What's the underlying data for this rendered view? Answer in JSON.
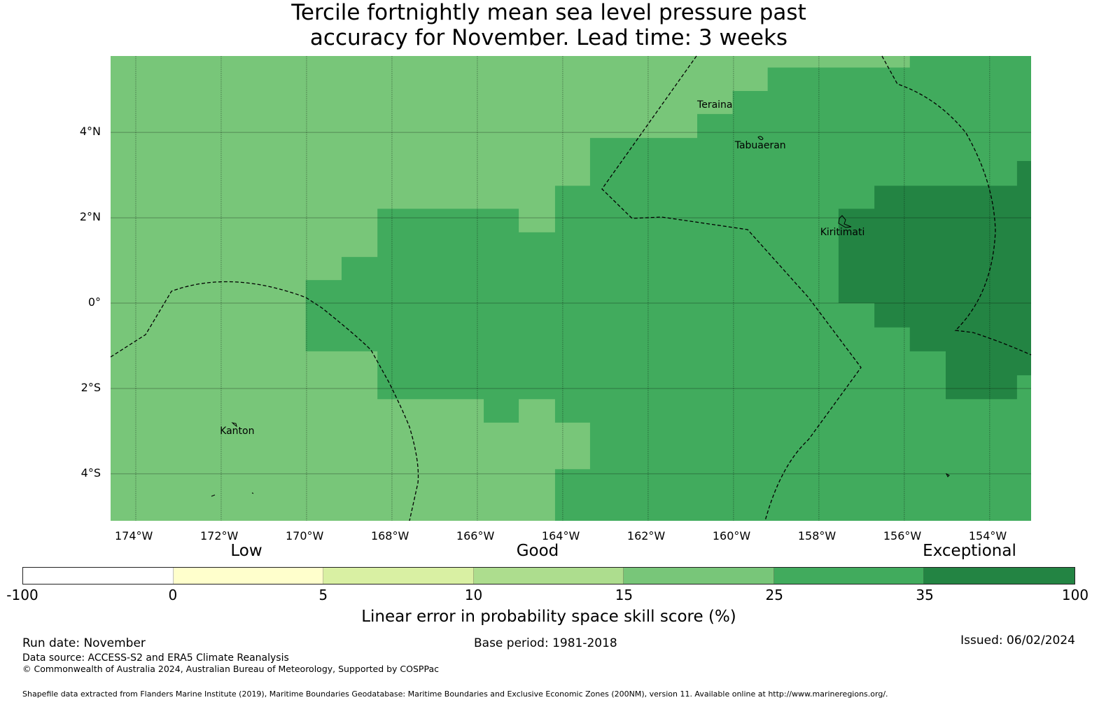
{
  "title_line1": "Tercile fortnightly mean sea level pressure past",
  "title_line2": "accuracy for November. Lead time: 3 weeks",
  "chart_data": {
    "type": "heatmap",
    "extent": {
      "lon": [
        -174.59,
        -153.03
      ],
      "lat": [
        -5.1,
        5.79
      ]
    },
    "lon_ticks": [
      {
        "value": -174,
        "label": "174°W"
      },
      {
        "value": -172,
        "label": "172°W"
      },
      {
        "value": -170,
        "label": "170°W"
      },
      {
        "value": -168,
        "label": "168°W"
      },
      {
        "value": -166,
        "label": "166°W"
      },
      {
        "value": -164,
        "label": "164°W"
      },
      {
        "value": -162,
        "label": "162°W"
      },
      {
        "value": -160,
        "label": "160°W"
      },
      {
        "value": -158,
        "label": "158°W"
      },
      {
        "value": -156,
        "label": "156°W"
      },
      {
        "value": -154,
        "label": "154°W"
      }
    ],
    "lat_ticks": [
      {
        "value": 4,
        "label": "4°N"
      },
      {
        "value": 2,
        "label": "2°N"
      },
      {
        "value": 0,
        "label": "0°"
      },
      {
        "value": -2,
        "label": "2°S"
      },
      {
        "value": -4,
        "label": "4°S"
      }
    ],
    "background_category": "15-25",
    "regions": [
      {
        "category": "25-35",
        "color": "#41ab5d",
        "polygon": [
          [
            -155.87,
            5.79
          ],
          [
            -153.03,
            5.79
          ],
          [
            -153.03,
            -5.1
          ],
          [
            -164.18,
            -5.1
          ],
          [
            -164.18,
            -3.89
          ],
          [
            -163.36,
            -3.89
          ],
          [
            -163.36,
            -2.8
          ],
          [
            -164.18,
            -2.8
          ],
          [
            -164.18,
            -2.25
          ],
          [
            -165.03,
            -2.25
          ],
          [
            -165.03,
            -2.8
          ],
          [
            -165.85,
            -2.8
          ],
          [
            -165.85,
            -2.25
          ],
          [
            -168.34,
            -2.25
          ],
          [
            -168.34,
            -1.13
          ],
          [
            -170.02,
            -1.13
          ],
          [
            -170.02,
            0.54
          ],
          [
            -169.18,
            0.54
          ],
          [
            -169.18,
            1.08
          ],
          [
            -168.34,
            1.08
          ],
          [
            -168.34,
            2.21
          ],
          [
            -165.03,
            2.21
          ],
          [
            -165.03,
            1.66
          ],
          [
            -164.18,
            1.66
          ],
          [
            -164.18,
            2.75
          ],
          [
            -163.36,
            2.75
          ],
          [
            -163.36,
            3.87
          ],
          [
            -160.85,
            3.87
          ],
          [
            -160.85,
            4.43
          ],
          [
            -160.02,
            4.43
          ],
          [
            -160.02,
            4.97
          ],
          [
            -159.2,
            4.97
          ],
          [
            -159.2,
            5.52
          ],
          [
            -155.87,
            5.52
          ]
        ]
      },
      {
        "category": "35-100",
        "color": "#238443",
        "polygon": [
          [
            -156.7,
            2.75
          ],
          [
            -153.36,
            2.75
          ],
          [
            -153.36,
            3.33
          ],
          [
            -153.03,
            3.33
          ],
          [
            -153.03,
            -1.69
          ],
          [
            -153.36,
            -1.69
          ],
          [
            -153.36,
            -2.25
          ],
          [
            -155.03,
            -2.25
          ],
          [
            -155.03,
            -1.13
          ],
          [
            -155.87,
            -1.13
          ],
          [
            -155.87,
            -0.57
          ],
          [
            -156.7,
            -0.57
          ],
          [
            -156.7,
            0
          ],
          [
            -157.54,
            0
          ],
          [
            -157.54,
            2.21
          ],
          [
            -156.7,
            2.21
          ]
        ]
      }
    ],
    "places": [
      {
        "name": "Teraina",
        "lon": -160.85,
        "lat": 4.75
      },
      {
        "name": "Tabuaeran",
        "lon": -159.97,
        "lat": 3.8
      },
      {
        "name": "Kiritimati",
        "lon": -157.97,
        "lat": 1.78
      },
      {
        "name": "Kanton",
        "lon": -172.03,
        "lat": -2.88
      }
    ],
    "colorbar": {
      "label": "Linear error in probability space skill score (%)",
      "bins": [
        {
          "from": -100,
          "to": 0,
          "color": "#ffffff"
        },
        {
          "from": 0,
          "to": 5,
          "color": "#ffffcc"
        },
        {
          "from": 5,
          "to": 10,
          "color": "#d9f0a3"
        },
        {
          "from": 10,
          "to": 15,
          "color": "#addd8e"
        },
        {
          "from": 15,
          "to": 25,
          "color": "#78c679"
        },
        {
          "from": 25,
          "to": 35,
          "color": "#41ab5d"
        },
        {
          "from": 35,
          "to": 100,
          "color": "#238443"
        }
      ],
      "tick_labels": [
        "-100",
        "0",
        "5",
        "10",
        "15",
        "25",
        "35",
        "100"
      ],
      "category_labels": {
        "low": "Low",
        "good": "Good",
        "exceptional": "Exceptional"
      }
    }
  },
  "footer": {
    "run_date": "Run date: November",
    "base_period": "Base period: 1981-2018",
    "issued": "Issued: 06/02/2024",
    "data_source": "Data source: ACCESS-S2 and ERA5 Climate Reanalysis",
    "copyright": "© Commonwealth of Australia 2024, Australian Bureau of Meteorology, Supported by COSPPac",
    "shapefile": "Shapefile data extracted from Flanders Marine Institute (2019), Maritime Boundaries Geodatabase: Maritime Boundaries and Exclusive Economic Zones (200NM), version 11. Available online at http://www.marineregions.org/."
  }
}
